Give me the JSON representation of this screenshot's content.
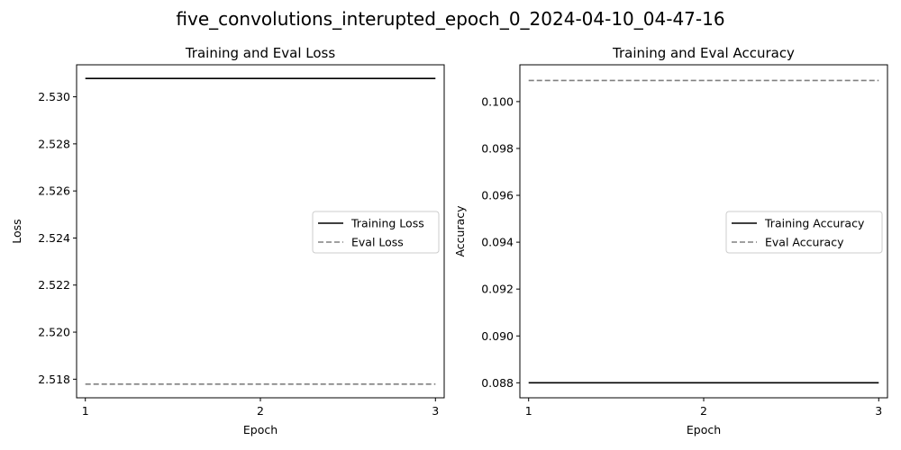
{
  "figure": {
    "title": "five_convolutions_interupted_epoch_0_2024-04-10_04-47-16"
  },
  "chart_data": [
    {
      "type": "line",
      "title": "Training and Eval Loss",
      "xlabel": "Epoch",
      "ylabel": "Loss",
      "x": [
        1,
        2,
        3
      ],
      "xticks": [
        1,
        2,
        3
      ],
      "xlim": [
        0.95,
        3.05
      ],
      "ylim": [
        2.51721,
        2.53136
      ],
      "yticks": [
        2.518,
        2.52,
        2.522,
        2.524,
        2.526,
        2.528,
        2.53
      ],
      "ytick_decimals": 3,
      "grid": false,
      "legend_position": "center-right",
      "series": [
        {
          "name": "Training Loss",
          "values": [
            2.53078,
            2.53078,
            2.53078
          ],
          "color": "#000000",
          "dash": "solid"
        },
        {
          "name": "Eval Loss",
          "values": [
            2.51779,
            2.51779,
            2.51779
          ],
          "color": "#808080",
          "dash": "dashed"
        }
      ]
    },
    {
      "type": "line",
      "title": "Training and Eval Accuracy",
      "xlabel": "Epoch",
      "ylabel": "Accuracy",
      "x": [
        1,
        2,
        3
      ],
      "xticks": [
        1,
        2,
        3
      ],
      "xlim": [
        0.95,
        3.05
      ],
      "ylim": [
        0.08736,
        0.10157
      ],
      "yticks": [
        0.088,
        0.09,
        0.092,
        0.094,
        0.096,
        0.098,
        0.1
      ],
      "ytick_decimals": 3,
      "grid": false,
      "legend_position": "center-right",
      "series": [
        {
          "name": "Training Accuracy",
          "values": [
            0.088,
            0.088,
            0.088
          ],
          "color": "#000000",
          "dash": "solid"
        },
        {
          "name": "Eval Accuracy",
          "values": [
            0.1009,
            0.1009,
            0.1009
          ],
          "color": "#808080",
          "dash": "dashed"
        }
      ]
    }
  ]
}
